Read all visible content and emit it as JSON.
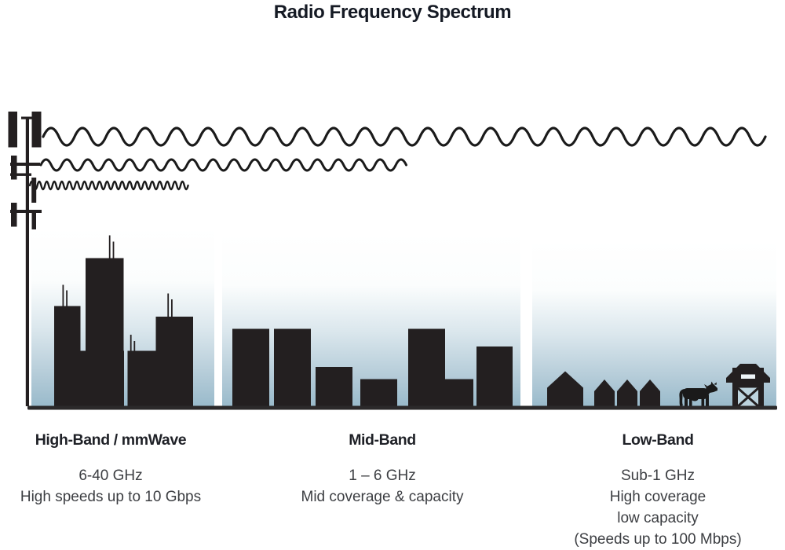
{
  "title": "Radio Frequency Spectrum",
  "bands": [
    {
      "name": "High-Band / mmWave",
      "lines": [
        "6-40 GHz",
        "High speeds up to 10 Gbps"
      ]
    },
    {
      "name": "Mid-Band",
      "lines": [
        "1 – 6 GHz",
        "Mid coverage & capacity"
      ]
    },
    {
      "name": "Low-Band",
      "lines": [
        "Sub-1 GHz",
        "High coverage",
        "low capacity",
        "(Speeds up to 100 Mbps)"
      ]
    }
  ],
  "scene": {
    "icons": [
      "cell-tower-icon",
      "wave-low-band-long-wavelength-icon",
      "wave-mid-band-medium-wavelength-icon",
      "wave-high-band-short-wavelength-icon",
      "city-skyscrapers-icon",
      "suburb-houses-icon",
      "cow-icon",
      "barn-icon"
    ],
    "colors": {
      "silhouette": "#231f20",
      "ground": "#2b292a",
      "sky_top": "#ffffff",
      "sky_bottom": "#97b9ca",
      "barn_door_panel": "#bdd4de",
      "title_text": "#151a24",
      "heading_text": "#1f2127",
      "body_text": "#3c3e42"
    }
  }
}
